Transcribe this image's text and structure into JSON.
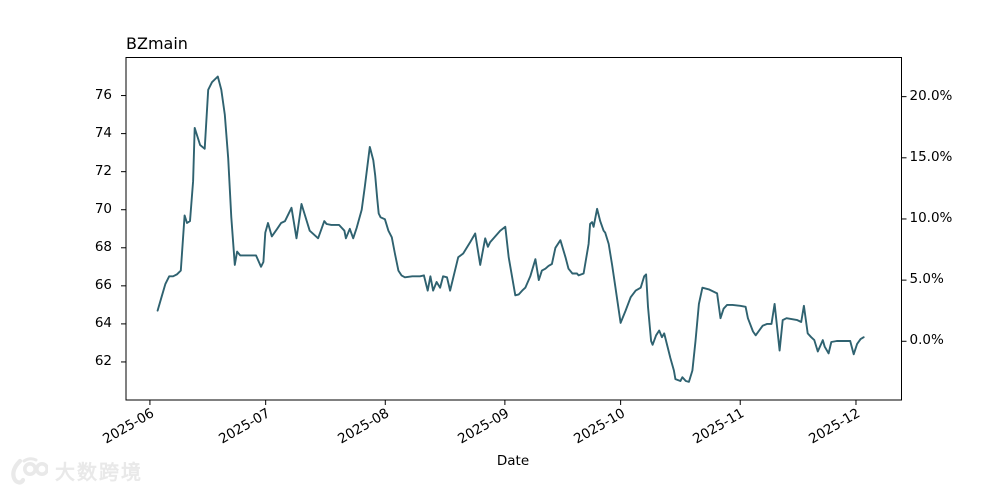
{
  "chart_data": {
    "type": "line",
    "title": "BZmain",
    "xlabel": "Date",
    "background": "#ffffff",
    "line_color": "#2f6270",
    "axis_color": "#000000",
    "grid": false,
    "legend": false,
    "x_axis": {
      "unit": "days since first data point (early June 2025)",
      "range": [
        -8.2,
        192.8
      ],
      "label_rotation_deg": 30,
      "ticks": [
        {
          "day": -2,
          "label": "2025-06"
        },
        {
          "day": 28,
          "label": "2025-07"
        },
        {
          "day": 59,
          "label": "2025-08"
        },
        {
          "day": 90,
          "label": "2025-09"
        },
        {
          "day": 120,
          "label": "2025-10"
        },
        {
          "day": 151,
          "label": "2025-11"
        },
        {
          "day": 181,
          "label": "2025-12"
        }
      ]
    },
    "y_axis_left": {
      "range": [
        60,
        78
      ],
      "ticks": [
        62,
        64,
        66,
        68,
        70,
        72,
        74,
        76
      ]
    },
    "y_axis_right": {
      "range_pct": [
        -4.8,
        23.2
      ],
      "ticks": [
        {
          "pct": 0,
          "label": "0.0%"
        },
        {
          "pct": 5,
          "label": "5.0%"
        },
        {
          "pct": 10,
          "label": "10.0%"
        },
        {
          "pct": 15,
          "label": "15.0%"
        },
        {
          "pct": 20,
          "label": "20.0%"
        }
      ]
    },
    "series": [
      {
        "name": "BZmain",
        "points": [
          [
            0,
            64.7
          ],
          [
            1,
            65.4
          ],
          [
            2,
            66.1
          ],
          [
            3,
            66.5
          ],
          [
            4,
            66.5
          ],
          [
            5,
            66.6
          ],
          [
            6,
            66.8
          ],
          [
            7,
            69.7
          ],
          [
            7.6,
            69.3
          ],
          [
            8.4,
            69.4
          ],
          [
            9.2,
            71.5
          ],
          [
            9.6,
            74.3
          ],
          [
            11,
            73.4
          ],
          [
            12.2,
            73.2
          ],
          [
            13.1,
            76.3
          ],
          [
            14.1,
            76.7
          ],
          [
            15.6,
            77.0
          ],
          [
            16.5,
            76.3
          ],
          [
            17.4,
            75.0
          ],
          [
            18.3,
            72.7
          ],
          [
            19.1,
            69.6
          ],
          [
            20,
            67.1
          ],
          [
            20.6,
            67.8
          ],
          [
            21.4,
            67.6
          ],
          [
            23,
            67.6
          ],
          [
            25.5,
            67.6
          ],
          [
            26.8,
            67.0
          ],
          [
            27.4,
            67.25
          ],
          [
            27.9,
            68.8
          ],
          [
            28.6,
            69.3
          ],
          [
            29.6,
            68.6
          ],
          [
            31,
            69.0
          ],
          [
            32,
            69.3
          ],
          [
            33,
            69.4
          ],
          [
            34.7,
            70.1
          ],
          [
            36,
            68.5
          ],
          [
            37.3,
            70.3
          ],
          [
            39.4,
            68.9
          ],
          [
            41.6,
            68.5
          ],
          [
            43.2,
            69.4
          ],
          [
            43.8,
            69.25
          ],
          [
            45,
            69.2
          ],
          [
            47,
            69.2
          ],
          [
            48.4,
            68.9
          ],
          [
            48.8,
            68.5
          ],
          [
            49.8,
            69.0
          ],
          [
            50.7,
            68.5
          ],
          [
            51.6,
            69.05
          ],
          [
            52.9,
            70.0
          ],
          [
            53.7,
            71.2
          ],
          [
            55,
            73.3
          ],
          [
            55.9,
            72.6
          ],
          [
            56.4,
            71.8
          ],
          [
            56.9,
            70.6
          ],
          [
            57.3,
            69.8
          ],
          [
            57.8,
            69.6
          ],
          [
            58.9,
            69.5
          ],
          [
            59.8,
            68.9
          ],
          [
            60.7,
            68.55
          ],
          [
            61.5,
            67.7
          ],
          [
            62.4,
            66.8
          ],
          [
            63.2,
            66.55
          ],
          [
            64.1,
            66.45
          ],
          [
            66,
            66.5
          ],
          [
            68,
            66.5
          ],
          [
            69,
            66.55
          ],
          [
            70,
            65.75
          ],
          [
            70.7,
            66.5
          ],
          [
            71.4,
            65.75
          ],
          [
            72.3,
            66.2
          ],
          [
            73.2,
            65.9
          ],
          [
            74,
            66.5
          ],
          [
            75,
            66.45
          ],
          [
            75.8,
            65.75
          ],
          [
            77.9,
            67.5
          ],
          [
            79.2,
            67.7
          ],
          [
            81,
            68.3
          ],
          [
            82.3,
            68.75
          ],
          [
            83.6,
            67.1
          ],
          [
            84.9,
            68.5
          ],
          [
            85.6,
            68.05
          ],
          [
            86.2,
            68.3
          ],
          [
            88.8,
            68.9
          ],
          [
            90.1,
            69.1
          ],
          [
            91,
            67.5
          ],
          [
            92.7,
            65.5
          ],
          [
            93.6,
            65.55
          ],
          [
            94.5,
            65.75
          ],
          [
            95.3,
            65.9
          ],
          [
            96.6,
            66.5
          ],
          [
            97.9,
            67.4
          ],
          [
            98.8,
            66.3
          ],
          [
            99.6,
            66.8
          ],
          [
            100.5,
            66.9
          ],
          [
            101.3,
            67.05
          ],
          [
            102.2,
            67.15
          ],
          [
            103.1,
            68.0
          ],
          [
            104.4,
            68.4
          ],
          [
            105.7,
            67.5
          ],
          [
            106.5,
            66.9
          ],
          [
            107.5,
            66.65
          ],
          [
            108.7,
            66.65
          ],
          [
            109.1,
            66.55
          ],
          [
            110.4,
            66.65
          ],
          [
            111.7,
            68.2
          ],
          [
            112.1,
            69.25
          ],
          [
            112.6,
            69.35
          ],
          [
            113,
            69.1
          ],
          [
            113.9,
            70.05
          ],
          [
            114.7,
            69.4
          ],
          [
            115.6,
            68.9
          ],
          [
            116,
            68.8
          ],
          [
            116.9,
            68.2
          ],
          [
            117.8,
            67.1
          ],
          [
            118.6,
            66.0
          ],
          [
            120,
            64.05
          ],
          [
            121.3,
            64.7
          ],
          [
            122.6,
            65.4
          ],
          [
            123.9,
            65.75
          ],
          [
            125.2,
            65.9
          ],
          [
            126.1,
            66.5
          ],
          [
            126.6,
            66.6
          ],
          [
            127.1,
            64.9
          ],
          [
            127.9,
            63.1
          ],
          [
            128.3,
            62.9
          ],
          [
            129.2,
            63.4
          ],
          [
            130,
            63.65
          ],
          [
            130.7,
            63.3
          ],
          [
            131.3,
            63.5
          ],
          [
            132.9,
            62.2
          ],
          [
            133.8,
            61.55
          ],
          [
            134.2,
            61.1
          ],
          [
            135.5,
            61.0
          ],
          [
            136,
            61.2
          ],
          [
            136.9,
            61.0
          ],
          [
            137.7,
            60.95
          ],
          [
            138.6,
            61.55
          ],
          [
            139.4,
            63.1
          ],
          [
            140.3,
            65.05
          ],
          [
            141.2,
            65.9
          ],
          [
            143,
            65.8
          ],
          [
            145,
            65.6
          ],
          [
            145.9,
            64.3
          ],
          [
            146.7,
            64.8
          ],
          [
            147.6,
            65.0
          ],
          [
            149,
            65.0
          ],
          [
            151,
            64.95
          ],
          [
            152.4,
            64.9
          ],
          [
            153,
            64.3
          ],
          [
            154.3,
            63.6
          ],
          [
            155,
            63.4
          ],
          [
            156.8,
            63.9
          ],
          [
            158,
            64.0
          ],
          [
            159.1,
            64.0
          ],
          [
            159.9,
            65.05
          ],
          [
            161.2,
            62.6
          ],
          [
            162,
            64.2
          ],
          [
            163,
            64.3
          ],
          [
            165.8,
            64.2
          ],
          [
            166.8,
            64.1
          ],
          [
            167.5,
            64.95
          ],
          [
            168.5,
            63.5
          ],
          [
            169.4,
            63.3
          ],
          [
            170.2,
            63.15
          ],
          [
            171.1,
            62.55
          ],
          [
            172.4,
            63.15
          ],
          [
            172.9,
            62.8
          ],
          [
            173.9,
            62.45
          ],
          [
            174.6,
            63.05
          ],
          [
            176,
            63.1
          ],
          [
            178,
            63.1
          ],
          [
            179.5,
            63.1
          ],
          [
            180.4,
            62.4
          ],
          [
            181.3,
            62.95
          ],
          [
            182.2,
            63.2
          ],
          [
            183,
            63.3
          ]
        ]
      }
    ]
  },
  "watermark": {
    "text": "大数跨境",
    "color": "#e9e9e9"
  }
}
